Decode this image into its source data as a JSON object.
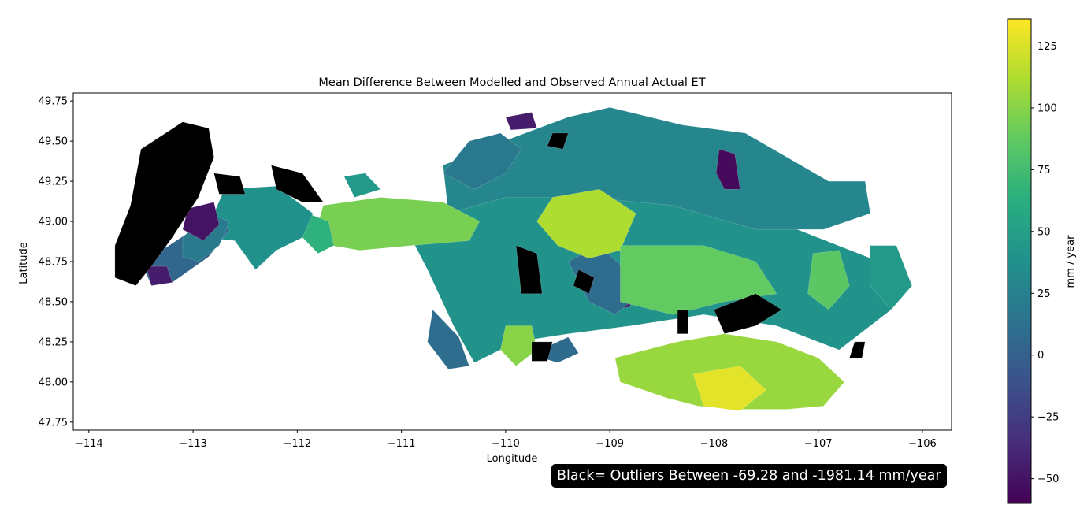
{
  "chart_data": {
    "type": "choropleth_map",
    "title": "Mean Difference Between Modelled and Observed Annual Actual ET",
    "xlabel": "Longitude",
    "ylabel": "Latitude",
    "xlim": [
      -114.15,
      -105.72
    ],
    "ylim": [
      47.7,
      49.8
    ],
    "x_ticks": [
      -114,
      -113,
      -112,
      -111,
      -110,
      -109,
      -108,
      -107,
      -106
    ],
    "x_tick_labels": [
      "−114",
      "−113",
      "−112",
      "−111",
      "−110",
      "−109",
      "−108",
      "−107",
      "−106"
    ],
    "y_ticks": [
      47.75,
      48.0,
      48.25,
      48.5,
      48.75,
      49.0,
      49.25,
      49.5,
      49.75
    ],
    "y_tick_labels": [
      "47.75",
      "48.00",
      "48.25",
      "48.50",
      "48.75",
      "49.00",
      "49.25",
      "49.50",
      "49.75"
    ],
    "colorbar": {
      "label": "mm / year",
      "colormap": "viridis",
      "range": [
        -60,
        136
      ],
      "ticks": [
        -50,
        -25,
        0,
        25,
        50,
        75,
        100,
        125
      ],
      "tick_labels": [
        "−50",
        "−25",
        "0",
        "25",
        "50",
        "75",
        "100",
        "125"
      ]
    },
    "outlier_color": "#000000",
    "annotation": "Black= Outliers Between -69.28 and -1981.14 mm/year",
    "regions": [
      {
        "value": 40,
        "outline": [
          [
            -110.6,
            49.02
          ],
          [
            -110.0,
            49.22
          ],
          [
            -109.1,
            49.3
          ],
          [
            -108.5,
            49.15
          ],
          [
            -108.0,
            49.05
          ],
          [
            -107.2,
            48.95
          ],
          [
            -106.3,
            48.72
          ],
          [
            -106.15,
            48.6
          ],
          [
            -106.3,
            48.45
          ],
          [
            -106.8,
            48.2
          ],
          [
            -107.4,
            48.35
          ],
          [
            -108.1,
            48.42
          ],
          [
            -108.8,
            48.35
          ],
          [
            -109.4,
            48.3
          ],
          [
            -109.9,
            48.25
          ],
          [
            -110.3,
            48.12
          ],
          [
            -110.5,
            48.35
          ],
          [
            -110.75,
            48.7
          ],
          [
            -110.95,
            48.95
          ]
        ]
      },
      {
        "value": 30,
        "outline": [
          [
            -110.6,
            49.35
          ],
          [
            -110.1,
            49.48
          ],
          [
            -109.4,
            49.65
          ],
          [
            -109.0,
            49.71
          ],
          [
            -108.3,
            49.6
          ],
          [
            -107.7,
            49.55
          ],
          [
            -107.3,
            49.4
          ],
          [
            -106.9,
            49.25
          ],
          [
            -106.55,
            49.25
          ],
          [
            -106.5,
            49.05
          ],
          [
            -106.95,
            48.95
          ],
          [
            -107.6,
            48.95
          ],
          [
            -108.4,
            49.1
          ],
          [
            -109.2,
            49.15
          ],
          [
            -110.0,
            49.15
          ],
          [
            -110.55,
            49.05
          ]
        ]
      },
      {
        "value": 18,
        "outline": [
          [
            -110.6,
            49.3
          ],
          [
            -110.35,
            49.5
          ],
          [
            -110.05,
            49.55
          ],
          [
            -109.85,
            49.45
          ],
          [
            -110.0,
            49.3
          ],
          [
            -110.3,
            49.2
          ]
        ]
      },
      {
        "value": 10,
        "outline": [
          [
            -110.7,
            48.45
          ],
          [
            -110.45,
            48.28
          ],
          [
            -110.35,
            48.1
          ],
          [
            -110.55,
            48.08
          ],
          [
            -110.75,
            48.25
          ]
        ]
      },
      {
        "value": 95,
        "outline": [
          [
            -111.75,
            49.1
          ],
          [
            -111.2,
            49.15
          ],
          [
            -110.6,
            49.12
          ],
          [
            -110.25,
            49.0
          ],
          [
            -110.35,
            48.88
          ],
          [
            -110.9,
            48.85
          ],
          [
            -111.4,
            48.82
          ],
          [
            -111.85,
            48.87
          ]
        ]
      },
      {
        "value": 65,
        "outline": [
          [
            -111.9,
            49.05
          ],
          [
            -111.7,
            49.0
          ],
          [
            -111.65,
            48.85
          ],
          [
            -111.8,
            48.8
          ],
          [
            -111.95,
            48.9
          ]
        ]
      },
      {
        "value": 38,
        "outline": [
          [
            -112.7,
            49.2
          ],
          [
            -112.2,
            49.22
          ],
          [
            -111.85,
            49.05
          ],
          [
            -111.95,
            48.9
          ],
          [
            -112.2,
            48.82
          ],
          [
            -112.4,
            48.7
          ],
          [
            -112.6,
            48.88
          ],
          [
            -112.9,
            48.9
          ]
        ]
      },
      {
        "value": 45,
        "outline": [
          [
            -111.55,
            49.28
          ],
          [
            -111.35,
            49.3
          ],
          [
            -111.2,
            49.2
          ],
          [
            -111.45,
            49.15
          ]
        ]
      },
      {
        "value": 5,
        "outline": [
          [
            -113.5,
            48.75
          ],
          [
            -113.3,
            48.82
          ],
          [
            -113.0,
            48.95
          ],
          [
            -112.8,
            49.05
          ],
          [
            -112.65,
            48.95
          ],
          [
            -112.85,
            48.78
          ],
          [
            -113.2,
            48.62
          ],
          [
            -113.4,
            48.6
          ]
        ]
      },
      {
        "value": 20,
        "outline": [
          [
            -113.1,
            48.9
          ],
          [
            -112.85,
            49.05
          ],
          [
            -112.65,
            49.0
          ],
          [
            -112.75,
            48.85
          ],
          [
            -112.95,
            48.75
          ],
          [
            -113.1,
            48.78
          ]
        ]
      },
      {
        "value": -50,
        "outline": [
          [
            -113.05,
            49.08
          ],
          [
            -112.8,
            49.12
          ],
          [
            -112.75,
            48.98
          ],
          [
            -112.9,
            48.88
          ],
          [
            -113.1,
            48.95
          ]
        ]
      },
      {
        "value": -45,
        "outline": [
          [
            -113.45,
            48.72
          ],
          [
            -113.25,
            48.72
          ],
          [
            -113.2,
            48.62
          ],
          [
            -113.4,
            48.6
          ]
        ]
      },
      {
        "value": -52,
        "outline": [
          [
            -109.02,
            48.6
          ],
          [
            -108.85,
            48.57
          ],
          [
            -108.8,
            48.47
          ],
          [
            -108.95,
            48.45
          ],
          [
            -109.05,
            48.52
          ]
        ]
      },
      {
        "value": -55,
        "outline": [
          [
            -107.95,
            49.45
          ],
          [
            -107.8,
            49.42
          ],
          [
            -107.75,
            49.2
          ],
          [
            -107.9,
            49.2
          ],
          [
            -107.98,
            49.3
          ]
        ]
      },
      {
        "value": -45,
        "outline": [
          [
            -110.0,
            49.65
          ],
          [
            -109.75,
            49.68
          ],
          [
            -109.7,
            49.58
          ],
          [
            -109.95,
            49.57
          ]
        ]
      },
      {
        "value": 10,
        "outline": [
          [
            -109.4,
            48.75
          ],
          [
            -109.1,
            48.85
          ],
          [
            -108.85,
            48.7
          ],
          [
            -108.7,
            48.55
          ],
          [
            -108.95,
            48.42
          ],
          [
            -109.2,
            48.5
          ]
        ]
      },
      {
        "value": 8,
        "outline": [
          [
            -109.6,
            48.22
          ],
          [
            -109.4,
            48.28
          ],
          [
            -109.3,
            48.18
          ],
          [
            -109.5,
            48.12
          ],
          [
            -109.65,
            48.15
          ]
        ]
      },
      {
        "value": 112,
        "outline": [
          [
            -109.55,
            49.15
          ],
          [
            -109.1,
            49.2
          ],
          [
            -108.75,
            49.05
          ],
          [
            -108.9,
            48.82
          ],
          [
            -109.2,
            48.77
          ],
          [
            -109.5,
            48.85
          ],
          [
            -109.7,
            49.0
          ]
        ]
      },
      {
        "value": 88,
        "outline": [
          [
            -108.9,
            48.85
          ],
          [
            -108.1,
            48.85
          ],
          [
            -107.6,
            48.75
          ],
          [
            -107.4,
            48.55
          ],
          [
            -107.9,
            48.5
          ],
          [
            -108.4,
            48.42
          ],
          [
            -108.9,
            48.5
          ]
        ]
      },
      {
        "value": 100,
        "outline": [
          [
            -110.0,
            48.35
          ],
          [
            -109.75,
            48.35
          ],
          [
            -109.7,
            48.2
          ],
          [
            -109.9,
            48.1
          ],
          [
            -110.05,
            48.2
          ]
        ]
      },
      {
        "value": 105,
        "outline": [
          [
            -108.35,
            48.25
          ],
          [
            -107.9,
            48.3
          ],
          [
            -107.4,
            48.25
          ],
          [
            -107.0,
            48.15
          ],
          [
            -106.75,
            48.0
          ],
          [
            -106.95,
            47.85
          ],
          [
            -107.3,
            47.83
          ],
          [
            -107.8,
            47.83
          ],
          [
            -108.15,
            47.85
          ],
          [
            -108.45,
            47.9
          ],
          [
            -108.9,
            48.0
          ],
          [
            -108.95,
            48.15
          ]
        ]
      },
      {
        "value": 128,
        "outline": [
          [
            -108.2,
            48.05
          ],
          [
            -107.75,
            48.1
          ],
          [
            -107.5,
            47.95
          ],
          [
            -107.75,
            47.82
          ],
          [
            -108.1,
            47.85
          ]
        ]
      },
      {
        "value": 85,
        "outline": [
          [
            -107.05,
            48.8
          ],
          [
            -106.8,
            48.82
          ],
          [
            -106.7,
            48.6
          ],
          [
            -106.9,
            48.45
          ],
          [
            -107.1,
            48.55
          ]
        ]
      },
      {
        "value": 45,
        "outline": [
          [
            -106.5,
            48.85
          ],
          [
            -106.25,
            48.85
          ],
          [
            -106.1,
            48.6
          ],
          [
            -106.3,
            48.45
          ],
          [
            -106.5,
            48.6
          ]
        ]
      },
      {
        "value": -69.3,
        "outline": [
          [
            -113.5,
            49.45
          ],
          [
            -113.1,
            49.62
          ],
          [
            -112.85,
            49.58
          ],
          [
            -112.8,
            49.4
          ],
          [
            -112.95,
            49.15
          ],
          [
            -113.05,
            49.05
          ],
          [
            -113.2,
            48.9
          ],
          [
            -113.4,
            48.72
          ],
          [
            -113.55,
            48.6
          ],
          [
            -113.75,
            48.65
          ],
          [
            -113.75,
            48.85
          ],
          [
            -113.6,
            49.1
          ]
        ]
      },
      {
        "value": -69.3,
        "outline": [
          [
            -112.8,
            49.3
          ],
          [
            -112.55,
            49.28
          ],
          [
            -112.5,
            49.17
          ],
          [
            -112.75,
            49.17
          ]
        ]
      },
      {
        "value": -69.3,
        "outline": [
          [
            -112.25,
            49.35
          ],
          [
            -111.95,
            49.3
          ],
          [
            -111.75,
            49.12
          ],
          [
            -111.95,
            49.12
          ],
          [
            -112.2,
            49.2
          ]
        ]
      },
      {
        "value": -69.3,
        "outline": [
          [
            -109.55,
            49.55
          ],
          [
            -109.4,
            49.55
          ],
          [
            -109.45,
            49.45
          ],
          [
            -109.6,
            49.47
          ]
        ]
      },
      {
        "value": -69.3,
        "outline": [
          [
            -109.9,
            48.85
          ],
          [
            -109.7,
            48.8
          ],
          [
            -109.65,
            48.55
          ],
          [
            -109.85,
            48.55
          ]
        ]
      },
      {
        "value": -69.3,
        "outline": [
          [
            -108.0,
            48.45
          ],
          [
            -107.6,
            48.55
          ],
          [
            -107.35,
            48.45
          ],
          [
            -107.6,
            48.35
          ],
          [
            -107.9,
            48.3
          ]
        ]
      },
      {
        "value": -69.3,
        "outline": [
          [
            -108.35,
            48.45
          ],
          [
            -108.25,
            48.45
          ],
          [
            -108.25,
            48.3
          ],
          [
            -108.35,
            48.3
          ]
        ]
      },
      {
        "value": -69.3,
        "outline": [
          [
            -109.3,
            48.7
          ],
          [
            -109.15,
            48.65
          ],
          [
            -109.2,
            48.55
          ],
          [
            -109.35,
            48.6
          ]
        ]
      },
      {
        "value": -69.3,
        "outline": [
          [
            -109.75,
            48.25
          ],
          [
            -109.55,
            48.25
          ],
          [
            -109.6,
            48.13
          ],
          [
            -109.75,
            48.13
          ]
        ]
      },
      {
        "value": -69.3,
        "outline": [
          [
            -106.65,
            48.25
          ],
          [
            -106.55,
            48.25
          ],
          [
            -106.58,
            48.15
          ],
          [
            -106.7,
            48.15
          ]
        ]
      }
    ]
  }
}
